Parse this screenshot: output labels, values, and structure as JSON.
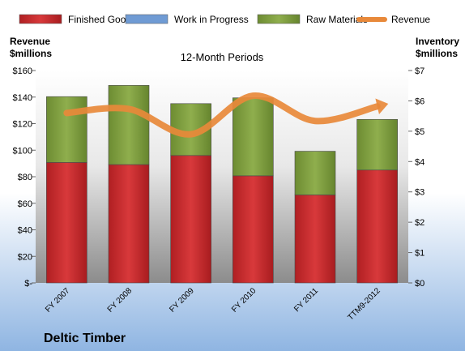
{
  "chart_data": {
    "type": "bar",
    "subtitle": "12-Month Periods",
    "footer_title": "Deltic Timber",
    "left_axis_label": [
      "Revenue",
      "$millions"
    ],
    "right_axis_label": [
      "Inventory",
      "$millions"
    ],
    "categories": [
      "FY 2007",
      "FY 2008",
      "FY 2009",
      "FY 2010",
      "FY 2011",
      "TTM9-2012"
    ],
    "left_ticks": [
      "$-",
      "$20",
      "$40",
      "$60",
      "$80",
      "$100",
      "$120",
      "$140",
      "$160"
    ],
    "right_ticks": [
      "$0",
      "$1",
      "$2",
      "$3",
      "$4",
      "$5",
      "$6",
      "$7"
    ],
    "left_ylim": [
      0,
      160
    ],
    "right_ylim": [
      0,
      7
    ],
    "stacked": true,
    "grid": false,
    "legend_position": "top",
    "series": [
      {
        "name": "Finished Goods",
        "axis": "right",
        "color": "#c0282a",
        "values": [
          3.97,
          3.9,
          4.2,
          3.53,
          2.9,
          3.72
        ]
      },
      {
        "name": "Work in Progress",
        "axis": "right",
        "color": "#6f9bd4",
        "values": [
          0,
          0,
          0,
          0,
          0,
          0
        ]
      },
      {
        "name": "Raw Materials",
        "axis": "right",
        "color": "#7a9a3c",
        "values": [
          2.17,
          2.61,
          1.71,
          2.57,
          1.44,
          1.67
        ]
      },
      {
        "name": "Revenue",
        "axis": "left",
        "type": "line",
        "color": "#e8893a",
        "values": [
          128,
          131,
          112,
          141,
          122,
          133
        ]
      }
    ]
  }
}
